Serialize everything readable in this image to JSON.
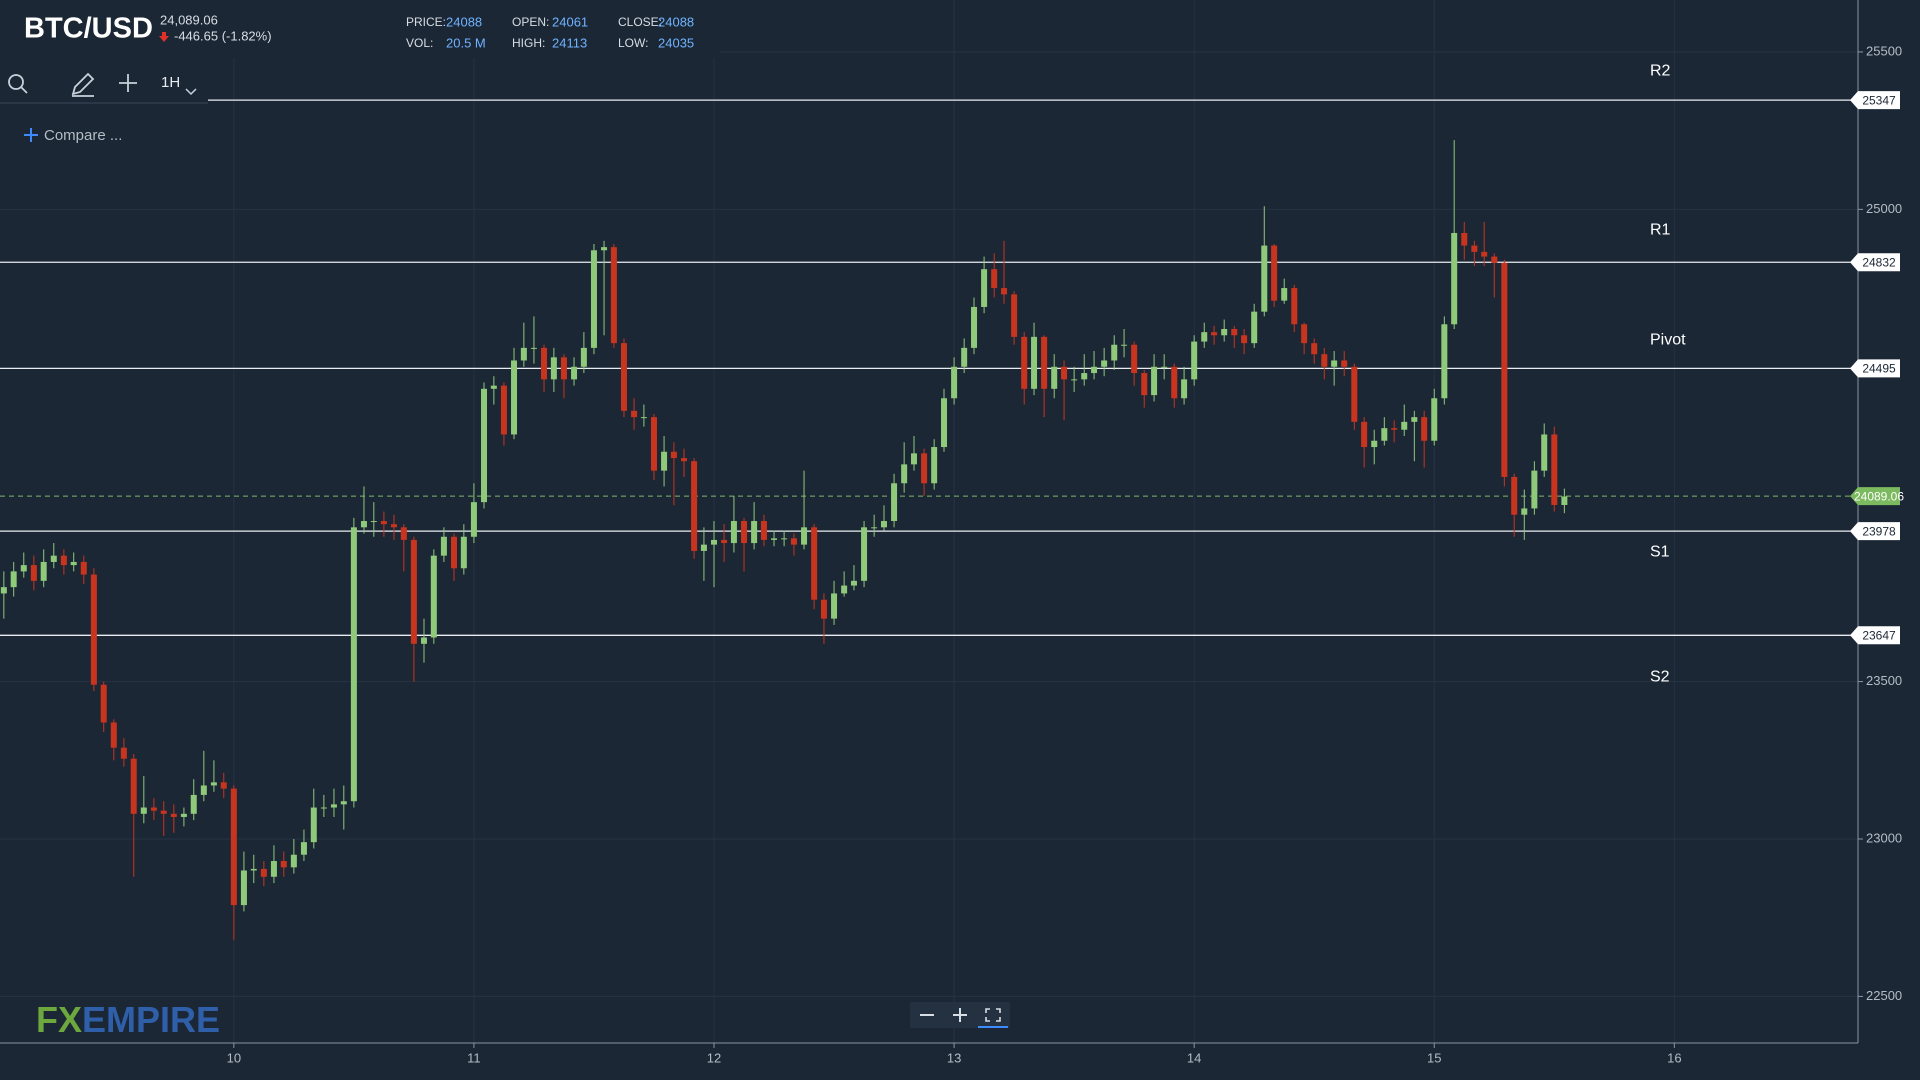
{
  "header": {
    "symbol": "BTC/USD",
    "last": "24,089.06",
    "change": "-446.65 (-1.82%)",
    "stats": [
      {
        "label": "PRICE:",
        "value": 24088
      },
      {
        "label": "OPEN:",
        "value": 24061
      },
      {
        "label": "CLOSE:",
        "value": 24088
      },
      {
        "label": "VOL:",
        "value": "20.5 M"
      },
      {
        "label": "HIGH:",
        "value": 24113
      },
      {
        "label": "LOW:",
        "value": 24035
      }
    ]
  },
  "toolbar": {
    "interval": "1H",
    "compare": "Compare ..."
  },
  "watermark": [
    "FX",
    "EMPIRE"
  ],
  "chart_data": {
    "type": "candlestick",
    "up_color": "#8fc97a",
    "down_color": "#c9341f",
    "xlim": [
      9.026,
      16.765
    ],
    "xticks": [
      10,
      11,
      12,
      13,
      14,
      15,
      16
    ],
    "ylim": [
      22352,
      25665
    ],
    "yticks": [
      22500,
      23000,
      23500,
      25000,
      25500
    ],
    "grid": true,
    "levels": [
      {
        "name": "R2",
        "value": 25347
      },
      {
        "name": "R1",
        "value": 24832
      },
      {
        "name": "Pivot",
        "value": 24495
      },
      {
        "name": "S1",
        "value": 23978
      },
      {
        "name": "S2",
        "value": 23647
      }
    ],
    "last_price": 24089.06,
    "x": [
      9.042,
      9.083,
      9.125,
      9.167,
      9.208,
      9.25,
      9.292,
      9.333,
      9.375,
      9.417,
      9.458,
      9.5,
      9.542,
      9.583,
      9.625,
      9.667,
      9.708,
      9.75,
      9.792,
      9.833,
      9.875,
      9.917,
      9.958,
      10,
      10.042,
      10.083,
      10.125,
      10.167,
      10.208,
      10.25,
      10.292,
      10.333,
      10.375,
      10.417,
      10.458,
      10.5,
      10.542,
      10.583,
      10.625,
      10.667,
      10.708,
      10.75,
      10.792,
      10.833,
      10.875,
      10.917,
      10.958,
      11,
      11.042,
      11.083,
      11.125,
      11.167,
      11.208,
      11.25,
      11.292,
      11.333,
      11.375,
      11.417,
      11.458,
      11.5,
      11.542,
      11.583,
      11.625,
      11.667,
      11.708,
      11.75,
      11.792,
      11.833,
      11.875,
      11.917,
      11.958,
      12,
      12.042,
      12.083,
      12.125,
      12.167,
      12.208,
      12.25,
      12.292,
      12.333,
      12.375,
      12.417,
      12.458,
      12.5,
      12.542,
      12.583,
      12.625,
      12.667,
      12.708,
      12.75,
      12.792,
      12.833,
      12.875,
      12.917,
      12.958,
      13,
      13.042,
      13.083,
      13.125,
      13.167,
      13.208,
      13.25,
      13.292,
      13.333,
      13.375,
      13.417,
      13.458,
      13.5,
      13.542,
      13.583,
      13.625,
      13.667,
      13.708,
      13.75,
      13.792,
      13.833,
      13.875,
      13.917,
      13.958,
      14,
      14.042,
      14.083,
      14.125,
      14.167,
      14.208,
      14.25,
      14.292,
      14.333,
      14.375,
      14.417,
      14.458,
      14.5,
      14.542,
      14.583,
      14.625,
      14.667,
      14.708,
      14.75,
      14.792,
      14.833,
      14.875,
      14.917,
      14.958,
      15,
      15.042,
      15.083,
      15.125,
      15.167,
      15.208,
      15.25,
      15.292,
      15.333,
      15.375,
      15.417,
      15.458,
      15.5,
      15.542
    ],
    "values": [
      [
        23780,
        23850,
        23700,
        23800
      ],
      [
        23800,
        23880,
        23770,
        23850
      ],
      [
        23850,
        23910,
        23830,
        23870
      ],
      [
        23870,
        23900,
        23790,
        23820
      ],
      [
        23820,
        23920,
        23800,
        23880
      ],
      [
        23880,
        23940,
        23860,
        23900
      ],
      [
        23900,
        23920,
        23840,
        23870
      ],
      [
        23870,
        23910,
        23850,
        23880
      ],
      [
        23880,
        23900,
        23810,
        23840
      ],
      [
        23840,
        23860,
        23470,
        23490
      ],
      [
        23490,
        23500,
        23340,
        23370
      ],
      [
        23370,
        23380,
        23250,
        23290
      ],
      [
        23290,
        23320,
        23230,
        23255
      ],
      [
        23255,
        23270,
        22880,
        23080
      ],
      [
        23080,
        23200,
        23050,
        23100
      ],
      [
        23100,
        23130,
        23060,
        23090
      ],
      [
        23090,
        23120,
        23010,
        23080
      ],
      [
        23080,
        23110,
        23020,
        23070
      ],
      [
        23070,
        23100,
        23040,
        23080
      ],
      [
        23080,
        23190,
        23060,
        23140
      ],
      [
        23140,
        23280,
        23120,
        23170
      ],
      [
        23170,
        23250,
        23150,
        23180
      ],
      [
        23180,
        23210,
        23130,
        23160
      ],
      [
        23160,
        23170,
        22680,
        22790
      ],
      [
        22790,
        22960,
        22770,
        22900
      ],
      [
        22900,
        22950,
        22860,
        22905
      ],
      [
        22905,
        22930,
        22850,
        22880
      ],
      [
        22880,
        22980,
        22860,
        22930
      ],
      [
        22930,
        22960,
        22880,
        22910
      ],
      [
        22910,
        23000,
        22890,
        22950
      ],
      [
        22950,
        23030,
        22930,
        22990
      ],
      [
        22990,
        23160,
        22970,
        23100
      ],
      [
        23100,
        23140,
        23070,
        23100
      ],
      [
        23100,
        23160,
        23070,
        23110
      ],
      [
        23110,
        23170,
        23030,
        23120
      ],
      [
        23120,
        24020,
        23100,
        23990
      ],
      [
        23990,
        24120,
        23970,
        24010
      ],
      [
        24010,
        24070,
        23960,
        24010
      ],
      [
        24010,
        24040,
        23960,
        24000
      ],
      [
        24000,
        24030,
        23950,
        23990
      ],
      [
        23990,
        24000,
        23850,
        23950
      ],
      [
        23950,
        23960,
        23500,
        23620
      ],
      [
        23620,
        23700,
        23560,
        23640
      ],
      [
        23640,
        23920,
        23620,
        23900
      ],
      [
        23900,
        23990,
        23880,
        23960
      ],
      [
        23960,
        23970,
        23820,
        23860
      ],
      [
        23860,
        24000,
        23840,
        23960
      ],
      [
        23960,
        24130,
        23940,
        24070
      ],
      [
        24070,
        24450,
        24050,
        24430
      ],
      [
        24430,
        24470,
        24380,
        24440
      ],
      [
        24440,
        24450,
        24250,
        24285
      ],
      [
        24285,
        24560,
        24270,
        24520
      ],
      [
        24520,
        24640,
        24500,
        24560
      ],
      [
        24560,
        24660,
        24510,
        24560
      ],
      [
        24560,
        24570,
        24420,
        24460
      ],
      [
        24460,
        24560,
        24420,
        24530
      ],
      [
        24530,
        24540,
        24400,
        24460
      ],
      [
        24460,
        24530,
        24440,
        24500
      ],
      [
        24500,
        24610,
        24480,
        24560
      ],
      [
        24560,
        24890,
        24540,
        24870
      ],
      [
        24870,
        24900,
        24600,
        24880
      ],
      [
        24880,
        24890,
        24560,
        24575
      ],
      [
        24575,
        24590,
        24340,
        24360
      ],
      [
        24360,
        24400,
        24300,
        24340
      ],
      [
        24340,
        24380,
        24310,
        24340
      ],
      [
        24340,
        24350,
        24140,
        24170
      ],
      [
        24170,
        24280,
        24120,
        24230
      ],
      [
        24230,
        24260,
        24060,
        24210
      ],
      [
        24210,
        24240,
        24150,
        24200
      ],
      [
        24200,
        24210,
        23890,
        23915
      ],
      [
        23915,
        23990,
        23820,
        23935
      ],
      [
        23935,
        24010,
        23800,
        23950
      ],
      [
        23950,
        24000,
        23880,
        23940
      ],
      [
        23940,
        24090,
        23910,
        24010
      ],
      [
        24010,
        24020,
        23850,
        23940
      ],
      [
        23940,
        24070,
        23920,
        24010
      ],
      [
        24010,
        24030,
        23930,
        23950
      ],
      [
        23950,
        23980,
        23930,
        23955
      ],
      [
        23955,
        23980,
        23930,
        23955
      ],
      [
        23955,
        23970,
        23900,
        23935
      ],
      [
        23935,
        24170,
        23920,
        23990
      ],
      [
        23990,
        24000,
        23730,
        23760
      ],
      [
        23760,
        23780,
        23620,
        23700
      ],
      [
        23700,
        23820,
        23680,
        23780
      ],
      [
        23780,
        23850,
        23770,
        23805
      ],
      [
        23805,
        23870,
        23790,
        23820
      ],
      [
        23820,
        24010,
        23800,
        23990
      ],
      [
        23990,
        24030,
        23960,
        23990
      ],
      [
        23990,
        24060,
        23980,
        24010
      ],
      [
        24010,
        24160,
        23990,
        24130
      ],
      [
        24130,
        24260,
        24100,
        24190
      ],
      [
        24190,
        24280,
        24170,
        24225
      ],
      [
        24225,
        24240,
        24090,
        24130
      ],
      [
        24130,
        24270,
        24110,
        24245
      ],
      [
        24245,
        24430,
        24230,
        24400
      ],
      [
        24400,
        24530,
        24380,
        24500
      ],
      [
        24500,
        24590,
        24480,
        24560
      ],
      [
        24560,
        24720,
        24540,
        24690
      ],
      [
        24690,
        24850,
        24670,
        24810
      ],
      [
        24810,
        24860,
        24720,
        24750
      ],
      [
        24750,
        24900,
        24700,
        24730
      ],
      [
        24730,
        24740,
        24570,
        24595
      ],
      [
        24595,
        24610,
        24380,
        24430
      ],
      [
        24430,
        24640,
        24410,
        24595
      ],
      [
        24595,
        24600,
        24340,
        24430
      ],
      [
        24430,
        24540,
        24400,
        24500
      ],
      [
        24500,
        24520,
        24330,
        24460
      ],
      [
        24460,
        24500,
        24420,
        24460
      ],
      [
        24460,
        24540,
        24440,
        24480
      ],
      [
        24480,
        24550,
        24460,
        24500
      ],
      [
        24500,
        24560,
        24470,
        24520
      ],
      [
        24520,
        24600,
        24490,
        24570
      ],
      [
        24570,
        24620,
        24530,
        24570
      ],
      [
        24570,
        24580,
        24440,
        24480
      ],
      [
        24480,
        24490,
        24370,
        24410
      ],
      [
        24410,
        24540,
        24390,
        24500
      ],
      [
        24500,
        24540,
        24460,
        24500
      ],
      [
        24500,
        24510,
        24370,
        24400
      ],
      [
        24400,
        24500,
        24380,
        24460
      ],
      [
        24460,
        24600,
        24440,
        24580
      ],
      [
        24580,
        24640,
        24560,
        24610
      ],
      [
        24610,
        24630,
        24570,
        24600
      ],
      [
        24600,
        24650,
        24580,
        24620
      ],
      [
        24620,
        24630,
        24560,
        24600
      ],
      [
        24600,
        24620,
        24540,
        24575
      ],
      [
        24575,
        24700,
        24560,
        24675
      ],
      [
        24675,
        25010,
        24660,
        24885
      ],
      [
        24885,
        24890,
        24690,
        24710
      ],
      [
        24710,
        24780,
        24700,
        24750
      ],
      [
        24750,
        24760,
        24610,
        24635
      ],
      [
        24635,
        24640,
        24540,
        24575
      ],
      [
        24575,
        24590,
        24510,
        24540
      ],
      [
        24540,
        24560,
        24460,
        24500
      ],
      [
        24500,
        24550,
        24440,
        24520
      ],
      [
        24520,
        24550,
        24470,
        24500
      ],
      [
        24500,
        24510,
        24300,
        24325
      ],
      [
        24325,
        24340,
        24180,
        24245
      ],
      [
        24245,
        24300,
        24190,
        24265
      ],
      [
        24265,
        24340,
        24250,
        24305
      ],
      [
        24305,
        24330,
        24260,
        24300
      ],
      [
        24300,
        24380,
        24280,
        24325
      ],
      [
        24325,
        24360,
        24200,
        24340
      ],
      [
        24340,
        24360,
        24180,
        24265
      ],
      [
        24265,
        24430,
        24250,
        24400
      ],
      [
        24400,
        24660,
        24380,
        24635
      ],
      [
        24635,
        25220,
        24620,
        24925
      ],
      [
        24925,
        24960,
        24840,
        24885
      ],
      [
        24885,
        24900,
        24820,
        24865
      ],
      [
        24865,
        24960,
        24820,
        24850
      ],
      [
        24850,
        24860,
        24720,
        24830
      ],
      [
        24830,
        24840,
        24120,
        24150
      ],
      [
        24150,
        24160,
        23960,
        24030
      ],
      [
        24030,
        24110,
        23950,
        24050
      ],
      [
        24050,
        24200,
        24030,
        24170
      ],
      [
        24170,
        24320,
        24150,
        24285
      ],
      [
        24285,
        24310,
        24040,
        24061
      ],
      [
        24061,
        24113,
        24035,
        24088
      ]
    ]
  }
}
